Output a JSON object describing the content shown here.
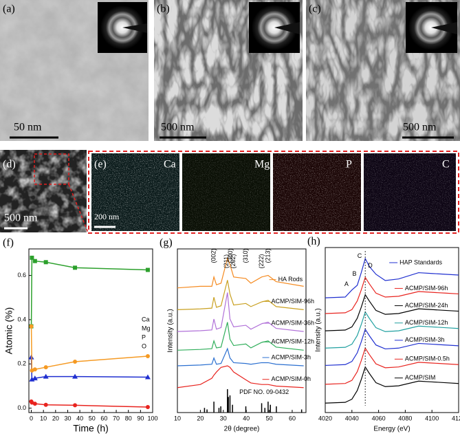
{
  "images": {
    "panels": [
      {
        "label": "(a)",
        "scale": "50 nm"
      },
      {
        "label": "(b)",
        "scale": "500 nm"
      },
      {
        "label": "(c)",
        "scale": "500 nm"
      }
    ],
    "overview": {
      "label": "(d)",
      "scale": "500 nm"
    },
    "mapping": {
      "label": "(e)",
      "scale": "200 nm",
      "elements": [
        "Ca",
        "Mg",
        "P",
        "C"
      ]
    }
  },
  "chart_data": [
    {
      "type": "line",
      "panel": "(f)",
      "xlabel": "Time (h)",
      "ylabel": "Atomic (%)",
      "markers": true,
      "x": [
        0,
        0.5,
        3,
        12,
        36,
        96
      ],
      "xlim": [
        -2,
        100
      ],
      "xticks": [
        0,
        10,
        20,
        30,
        40,
        50,
        60,
        70,
        80,
        90,
        100
      ],
      "ylim": [
        -0.02,
        0.72
      ],
      "yticks": [
        {
          "value": 0,
          "label": "0.0"
        },
        {
          "value": 0.2,
          "label": "0.2"
        },
        {
          "value": 0.4,
          "label": "0.4"
        },
        {
          "value": 0.6,
          "label": "0.6"
        }
      ],
      "series": [
        {
          "name": "Ca",
          "color": "#2ca02c",
          "marker": "square",
          "values": [
            0.37,
            0.68,
            0.665,
            0.66,
            0.635,
            0.625
          ]
        },
        {
          "name": "Mg",
          "color": "#e8231e",
          "marker": "circle",
          "values": [
            0.03,
            0.025,
            0.02,
            0.015,
            0.013,
            0.005
          ]
        },
        {
          "name": "P",
          "color": "#1f2fd0",
          "marker": "triangle",
          "values": [
            0.23,
            0.13,
            0.135,
            0.143,
            0.143,
            0.14
          ]
        },
        {
          "name": "O",
          "color": "#f59a23",
          "marker": "circle",
          "values": [
            0.37,
            0.17,
            0.175,
            0.185,
            0.21,
            0.235
          ]
        }
      ]
    },
    {
      "type": "line",
      "panel": "(g)",
      "xlabel": "2θ (degree)",
      "ylabel": "Intensity (a.u.)",
      "x": [
        10,
        20,
        25,
        25.9,
        27,
        29,
        31.8,
        32.9,
        34.5,
        39.8,
        42,
        46.7,
        49.5,
        53,
        65
      ],
      "xlim": [
        10,
        66
      ],
      "xticks": [
        10,
        20,
        30,
        40,
        50,
        60
      ],
      "ylim": [
        0,
        10.5
      ],
      "series": [
        {
          "name": "ACMP/SIM-0h",
          "color": "#e8231e",
          "values": [
            1.6,
            1.8,
            2.2,
            2.4,
            2.6,
            2.9,
            3.0,
            2.9,
            2.6,
            2.1,
            1.9,
            1.8,
            1.8,
            1.7,
            1.6
          ]
        },
        {
          "name": "ACMP/SIM-3h",
          "color": "#2a6fd0",
          "values": [
            3.0,
            3.05,
            3.1,
            3.5,
            3.1,
            3.15,
            4.1,
            3.5,
            3.2,
            3.15,
            3.1,
            3.2,
            3.2,
            3.1,
            3.0
          ]
        },
        {
          "name": "ACMP/SIM-12h",
          "color": "#2fae5a",
          "values": [
            4.0,
            4.05,
            4.1,
            4.6,
            4.15,
            4.2,
            5.8,
            4.7,
            4.3,
            4.4,
            4.15,
            4.5,
            4.6,
            4.2,
            4.0
          ]
        },
        {
          "name": "ACMP/SIM-36h",
          "color": "#b070d8",
          "values": [
            5.2,
            5.25,
            5.3,
            6.0,
            5.35,
            5.45,
            7.7,
            6.0,
            5.5,
            5.6,
            5.35,
            5.7,
            5.8,
            5.4,
            5.2
          ]
        },
        {
          "name": "ACMP/SIM-96h",
          "color": "#c9a020",
          "values": [
            6.6,
            6.65,
            6.7,
            7.4,
            6.75,
            6.85,
            8.5,
            7.6,
            6.9,
            7.0,
            6.8,
            7.1,
            7.2,
            6.8,
            6.6
          ]
        },
        {
          "name": "HA Rods",
          "color": "#f58a1f",
          "values": [
            8.0,
            8.1,
            8.1,
            8.7,
            8.2,
            8.3,
            9.9,
            9.5,
            8.7,
            8.6,
            8.3,
            8.7,
            8.8,
            8.4,
            8.1
          ]
        }
      ],
      "reference": {
        "name": "PDF NO. 09-0432",
        "x": [
          21.8,
          22.9,
          25.9,
          28.1,
          28.9,
          31.8,
          32.2,
          32.9,
          34.0,
          39.8,
          46.7,
          48.1,
          49.5,
          50.5,
          53.1,
          64.1
        ],
        "values": [
          0.3,
          0.2,
          0.7,
          0.3,
          0.4,
          1.5,
          1.0,
          1.1,
          0.5,
          0.4,
          0.6,
          0.3,
          0.7,
          0.5,
          0.4,
          0.2
        ]
      },
      "annotations": [
        {
          "text": "(002)",
          "x": 25.9
        },
        {
          "text": "(211)",
          "x": 31.4
        },
        {
          "text": "(300)",
          "x": 33.2
        },
        {
          "text": "(202)",
          "x": 34.5
        },
        {
          "text": "(310)",
          "x": 39.8
        },
        {
          "text": "(222)",
          "x": 46.7
        },
        {
          "text": "(213)",
          "x": 49.5
        }
      ]
    },
    {
      "type": "line",
      "panel": "(h)",
      "xlabel": "Energy (eV)",
      "ylabel": "Intensity (a.u.)",
      "x": [
        4020,
        4035,
        4040,
        4044,
        4047,
        4050,
        4053,
        4058,
        4065,
        4075,
        4090,
        4100,
        4110,
        4120
      ],
      "xlim": [
        4020,
        4120
      ],
      "xticks": [
        4020,
        4040,
        4060,
        4080,
        4100,
        4120
      ],
      "ylim": [
        0,
        10.5
      ],
      "series": [
        {
          "name": "ACMP/SIM",
          "color": "#000000",
          "values": [
            0.6,
            0.65,
            0.85,
            1.4,
            2.1,
            2.9,
            2.5,
            1.9,
            1.65,
            1.7,
            2.0,
            1.95,
            1.9,
            1.85
          ]
        },
        {
          "name": "ACMP/SIM-0.5h",
          "color": "#e8231e",
          "values": [
            1.8,
            1.85,
            2.05,
            2.6,
            3.3,
            4.1,
            3.7,
            3.1,
            2.85,
            2.9,
            3.2,
            3.15,
            3.1,
            3.05
          ]
        },
        {
          "name": "ACMP/SIM-3h",
          "color": "#1f2fd0",
          "values": [
            3.0,
            3.05,
            3.25,
            3.8,
            4.5,
            5.3,
            4.9,
            4.3,
            4.05,
            4.1,
            4.4,
            4.35,
            4.3,
            4.25
          ]
        },
        {
          "name": "ACMP/SIM-12h",
          "color": "#20a0a0",
          "values": [
            4.1,
            4.15,
            4.35,
            4.9,
            5.6,
            6.4,
            6.0,
            5.4,
            5.15,
            5.2,
            5.5,
            5.45,
            5.4,
            5.35
          ]
        },
        {
          "name": "ACMP/SIM-24h",
          "color": "#000000",
          "values": [
            5.2,
            5.25,
            5.45,
            6.0,
            6.7,
            7.5,
            7.1,
            6.5,
            6.25,
            6.3,
            6.6,
            6.55,
            6.5,
            6.45
          ]
        },
        {
          "name": "ACMP/SIM-96h",
          "color": "#e8231e",
          "values": [
            6.3,
            6.35,
            6.55,
            7.1,
            7.8,
            8.6,
            8.2,
            7.6,
            7.35,
            7.4,
            7.7,
            7.65,
            7.6,
            7.55
          ]
        },
        {
          "name": "HAP Standards",
          "color": "#1f2fd0",
          "values": [
            7.3,
            7.35,
            7.8,
            8.1,
            8.9,
            9.8,
            9.3,
            8.8,
            8.4,
            8.5,
            8.9,
            8.85,
            8.8,
            8.75
          ]
        }
      ],
      "annotations": [
        {
          "text": "A",
          "x": 4039
        },
        {
          "text": "B",
          "x": 4045
        },
        {
          "text": "C",
          "x": 4049
        },
        {
          "text": "D",
          "x": 4057
        }
      ]
    }
  ]
}
